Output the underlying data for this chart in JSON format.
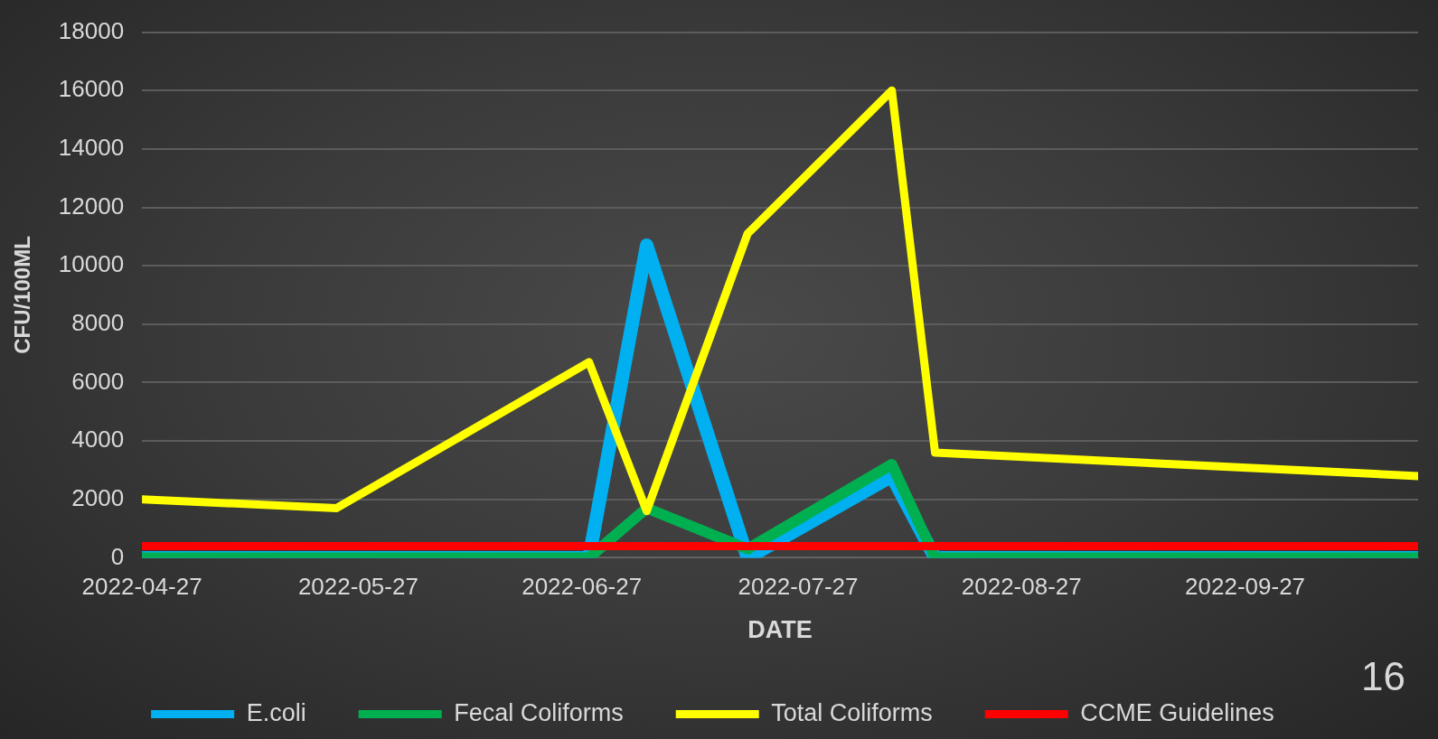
{
  "chart_data": {
    "type": "line",
    "xlabel": "DATE",
    "ylabel": "CFU/100ML",
    "x": [
      "2022-04-27",
      "2022-05-24",
      "2022-06-28",
      "2022-07-06",
      "2022-07-20",
      "2022-08-09",
      "2022-08-15",
      "2022-10-21"
    ],
    "series": [
      {
        "name": "E.coli",
        "color": "#00b0f0",
        "values": [
          0,
          0,
          0,
          10700,
          0,
          2800,
          0,
          0
        ]
      },
      {
        "name": "Fecal Coliforms",
        "color": "#00b050",
        "values": [
          0,
          0,
          0,
          1700,
          300,
          3200,
          0,
          0
        ]
      },
      {
        "name": "Total Coliforms",
        "color": "#ffff00",
        "values": [
          2000,
          1700,
          6700,
          1600,
          11100,
          16000,
          3600,
          2800
        ]
      },
      {
        "name": "CCME Guidelines",
        "color": "#ff0000",
        "values": [
          400,
          400,
          400,
          400,
          400,
          400,
          400,
          400
        ]
      }
    ],
    "xlim": [
      "2022-04-27",
      "2022-10-21"
    ],
    "xticks": [
      "2022-04-27",
      "2022-05-27",
      "2022-06-27",
      "2022-07-27",
      "2022-08-27",
      "2022-09-27"
    ],
    "ylim": [
      0,
      18000
    ],
    "yticks": [
      0,
      2000,
      4000,
      6000,
      8000,
      10000,
      12000,
      14000,
      16000,
      18000
    ],
    "grid": "y",
    "legend": "bottom",
    "marker": "none",
    "line_style": "solid",
    "annotations": [
      "16"
    ]
  }
}
